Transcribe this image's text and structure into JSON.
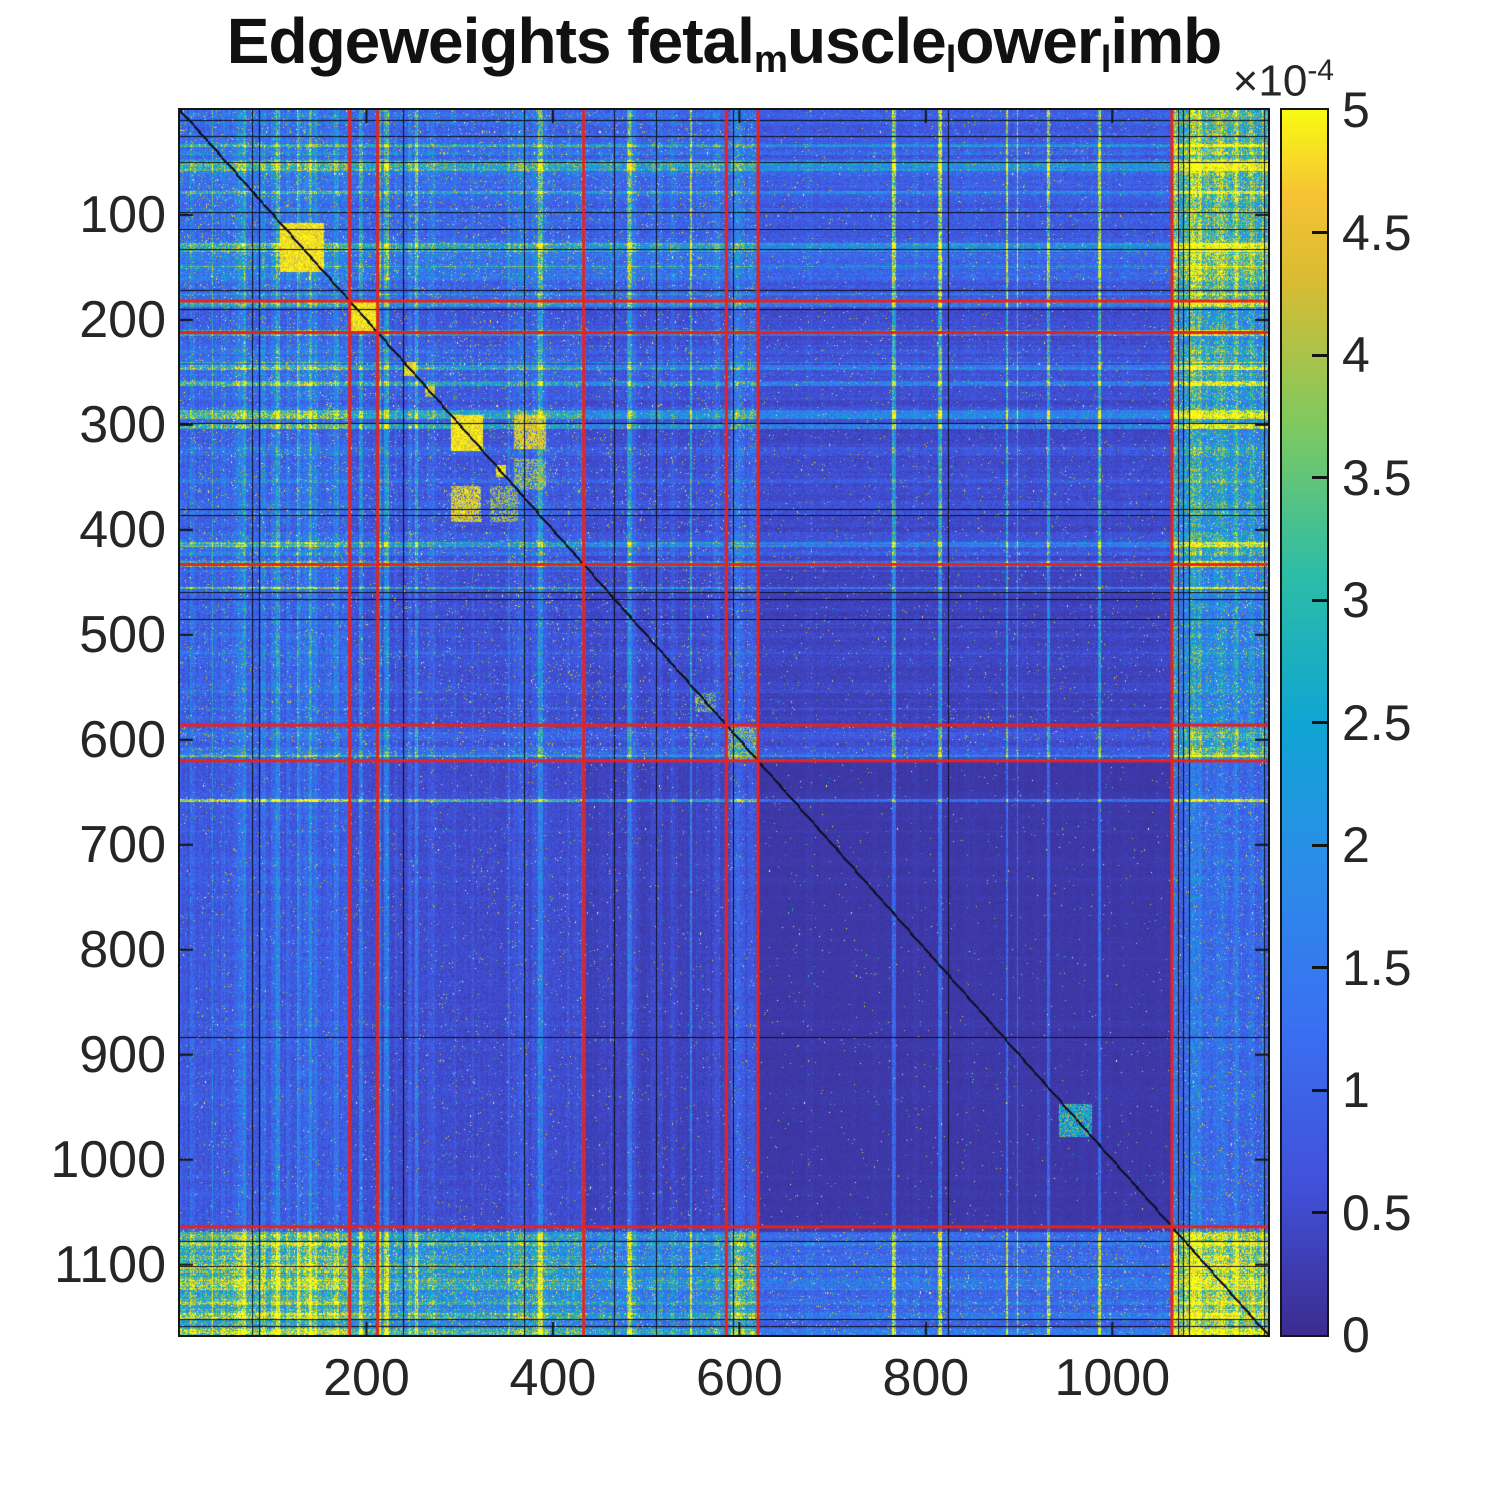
{
  "figure": {
    "background": "#ffffff",
    "title_plain": "Edgeweights fetal_muscle_lower_limb",
    "title_runs": [
      {
        "t": "Edgeweights fetal",
        "sub": false
      },
      {
        "t": "m",
        "sub": true
      },
      {
        "t": "uscle",
        "sub": false
      },
      {
        "t": "l",
        "sub": true
      },
      {
        "t": "ower",
        "sub": false
      },
      {
        "t": "l",
        "sub": true
      },
      {
        "t": "imb",
        "sub": false
      }
    ]
  },
  "axes": {
    "x_tick_labels": [
      "200",
      "400",
      "600",
      "800",
      "1000"
    ],
    "x_tick_values": [
      200,
      400,
      600,
      800,
      1000
    ],
    "y_tick_labels": [
      "100",
      "200",
      "300",
      "400",
      "500",
      "600",
      "700",
      "800",
      "900",
      "1000",
      "1100"
    ],
    "y_tick_values": [
      100,
      200,
      300,
      400,
      500,
      600,
      700,
      800,
      900,
      1000,
      1100
    ],
    "tick_color": "#262626",
    "axis_color": "#151515"
  },
  "colorbar": {
    "multiplier_base": "×10",
    "multiplier_exp": "-4",
    "tick_labels": [
      "5",
      "4.5",
      "4",
      "3.5",
      "3",
      "2.5",
      "2",
      "1.5",
      "1",
      "0.5",
      "0"
    ],
    "tick_values": [
      5,
      4.5,
      4,
      3.5,
      3,
      2.5,
      2,
      1.5,
      1,
      0.5,
      0
    ],
    "inner_tick_values": [
      4.5,
      4,
      3.5,
      3,
      2.5,
      2,
      1.5,
      1,
      0.5
    ]
  },
  "chart_data": {
    "type": "heatmap",
    "title": "Edgeweights fetal_muscle_lower_limb",
    "matrix_size": 1167,
    "x_range": [
      1,
      1167
    ],
    "y_range": [
      1,
      1167
    ],
    "y_axis_reversed": true,
    "value_range": [
      0,
      0.0005
    ],
    "colorbar_tick_values_e4": [
      0,
      0.5,
      1,
      1.5,
      2,
      2.5,
      3,
      3.5,
      4,
      4.5,
      5
    ],
    "colorbar_multiplier": 0.0001,
    "colormap": "parula",
    "colormap_stops": [
      [
        0.0,
        "#3b2c8f"
      ],
      [
        0.12,
        "#4150d8"
      ],
      [
        0.25,
        "#3a6ff2"
      ],
      [
        0.38,
        "#2b8ce8"
      ],
      [
        0.5,
        "#0fa5d2"
      ],
      [
        0.62,
        "#2cbca7"
      ],
      [
        0.74,
        "#7cc961"
      ],
      [
        0.86,
        "#d8bc32"
      ],
      [
        0.93,
        "#f6c234"
      ],
      [
        1.0,
        "#f8fb13"
      ]
    ],
    "grid_lines": {
      "color": "#e8231e",
      "positions": [
        182,
        212,
        433,
        586,
        620,
        1064
      ],
      "meaning": "cluster/block boundaries drawn in red across both axes"
    },
    "description": "Square pairwise edge-weight matrix (~1167x1167 nodes) rendered MATLAB imagesc-style with parula colormap. Mostly dark-blue sparse background with blue cross-hatch streaks; busy high-weight bands in first ~182 rows/cols and last ~103 rows/cols (bright yellow edge bands, especially corners); solid yellow diagonal blocks near 107-154, 182-212, 290-324; thin dark main diagonal; red cluster-boundary lines.",
    "procedural": {
      "seed_rows": 1337,
      "seed_cols": 7331,
      "boundaries_full": [
        0,
        182,
        212,
        433,
        586,
        620,
        1064,
        1167
      ],
      "segments": [
        {
          "name": "top-busy",
          "base": 0.3,
          "spread": 0.38,
          "spike_p": 0.14,
          "black_p": 0.02,
          "dot": 0.03
        },
        {
          "name": "band1",
          "base": 0.22,
          "spread": 0.3,
          "spike_p": 0.12,
          "black_p": 0.02,
          "dot": 0.025
        },
        {
          "name": "mid-busy",
          "base": 0.2,
          "spread": 0.33,
          "spike_p": 0.1,
          "black_p": 0.015,
          "dot": 0.025
        },
        {
          "name": "mid",
          "base": 0.14,
          "spread": 0.28,
          "spike_p": 0.07,
          "black_p": 0.012,
          "dot": 0.02
        },
        {
          "name": "band2",
          "base": 0.26,
          "spread": 0.36,
          "spike_p": 0.16,
          "black_p": 0.02,
          "dot": 0.03
        },
        {
          "name": "sparse",
          "base": 0.05,
          "spread": 0.1,
          "spike_p": 0.02,
          "black_p": 0.005,
          "dot": 0.009
        },
        {
          "name": "edge-yellow",
          "base": 0.55,
          "spread": 0.3,
          "spike_p": 0.45,
          "black_p": 0.05,
          "dot": 0.065
        }
      ],
      "em": [
        [
          1.15,
          1.05,
          1.2,
          1.3,
          1.05,
          1.5,
          1.6
        ],
        [
          1.05,
          1.05,
          1.0,
          1.0,
          1.0,
          1.2,
          1.35
        ],
        [
          1.2,
          1.0,
          1.08,
          1.0,
          1.0,
          1.2,
          1.3
        ],
        [
          1.3,
          1.0,
          1.0,
          1.0,
          1.0,
          1.0,
          1.2
        ],
        [
          1.05,
          1.0,
          1.0,
          1.0,
          1.15,
          1.2,
          1.35
        ],
        [
          1.5,
          1.2,
          1.2,
          1.0,
          1.2,
          0.8,
          1.12
        ],
        [
          1.6,
          1.35,
          1.3,
          1.2,
          1.35,
          1.12,
          1.35
        ]
      ],
      "features": [
        {
          "r": [
            107,
            154
          ],
          "c": [
            107,
            154
          ],
          "v": 1.0,
          "density": 1.0,
          "mirror": false
        },
        {
          "r": [
            182,
            212
          ],
          "c": [
            182,
            212
          ],
          "v": 1.0,
          "density": 1.0,
          "mirror": false
        },
        {
          "r": [
            290,
            324
          ],
          "c": [
            290,
            324
          ],
          "v": 1.0,
          "density": 1.0,
          "mirror": false
        },
        {
          "r": [
            240,
            253
          ],
          "c": [
            240,
            253
          ],
          "v": 0.95,
          "density": 1.0,
          "mirror": false
        },
        {
          "r": [
            262,
            273
          ],
          "c": [
            262,
            273
          ],
          "v": 0.92,
          "density": 0.9,
          "mirror": false
        },
        {
          "r": [
            338,
            349
          ],
          "c": [
            338,
            349
          ],
          "v": 0.95,
          "density": 1.0,
          "mirror": false
        },
        {
          "r": [
            358,
            392
          ],
          "c": [
            290,
            322
          ],
          "v": 0.95,
          "density": 0.8,
          "mirror": true
        },
        {
          "r": [
            358,
            392
          ],
          "c": [
            332,
            362
          ],
          "v": 0.9,
          "density": 0.5,
          "mirror": true
        },
        {
          "r": [
            586,
            620
          ],
          "c": [
            586,
            620
          ],
          "v": 0.92,
          "density": 0.4,
          "mirror": false
        },
        {
          "r": [
            555,
            573
          ],
          "c": [
            552,
            574
          ],
          "v": 0.85,
          "density": 0.45,
          "mirror": false
        },
        {
          "r": [
            946,
            978
          ],
          "c": [
            942,
            978
          ],
          "v": 0.52,
          "density": 0.9,
          "mirror": false
        },
        {
          "r": [
            946,
            978
          ],
          "c": [
            942,
            978
          ],
          "v": 1.0,
          "density": 0.12,
          "mirror": false
        }
      ],
      "diagonal_line_color": "#101026",
      "black_line_color": "#0e0e22"
    }
  }
}
